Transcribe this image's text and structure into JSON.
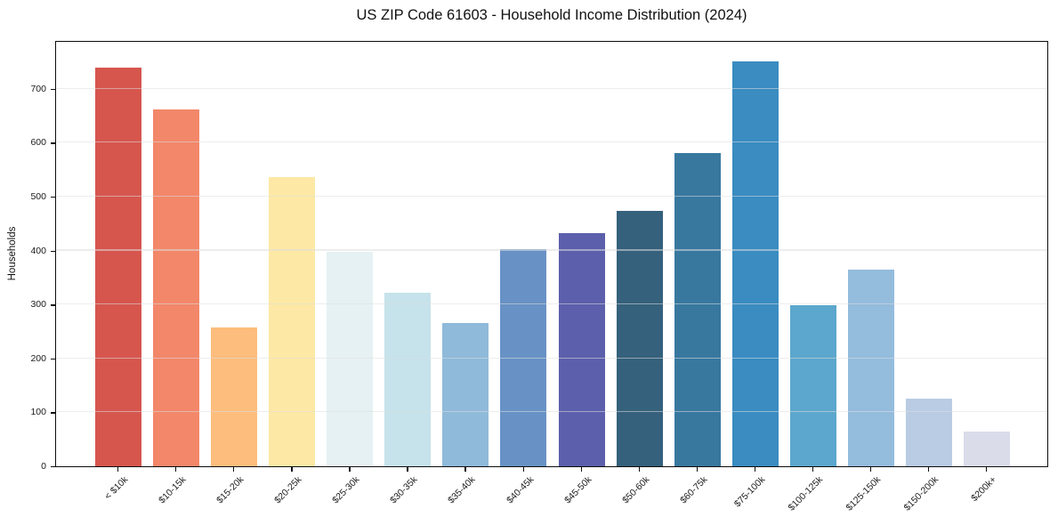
{
  "chart_data": {
    "type": "bar",
    "title": "US ZIP Code 61603 - Household Income Distribution (2024)",
    "xlabel": "",
    "ylabel": "Households",
    "categories": [
      "< $10k",
      "$10-15k",
      "$15-20k",
      "$20-25k",
      "$25-30k",
      "$30-35k",
      "$35-40k",
      "$40-45k",
      "$45-50k",
      "$50-60k",
      "$60-75k",
      "$75-100k",
      "$100-125k",
      "$125-150k",
      "$150-200k",
      "$200k+"
    ],
    "values": [
      740,
      661,
      257,
      536,
      398,
      321,
      265,
      403,
      432,
      473,
      581,
      751,
      298,
      365,
      126,
      64
    ],
    "bar_colors": [
      "#d6564e",
      "#f2876a",
      "#fcbd7d",
      "#fde8a5",
      "#e6f1f3",
      "#c6e2eb",
      "#8fbada",
      "#6892c5",
      "#5c5fab",
      "#35617c",
      "#38789f",
      "#3a8cc1",
      "#5ca7cd",
      "#94bcdd",
      "#b9cce3",
      "#dadcea"
    ],
    "yticks": [
      0,
      100,
      200,
      300,
      400,
      500,
      600,
      700
    ],
    "ylim": [
      0,
      787
    ],
    "grid": "horizontal",
    "grid_color": "#e4e4e4",
    "axis_color": "#0d0d0d",
    "legend": "none"
  }
}
